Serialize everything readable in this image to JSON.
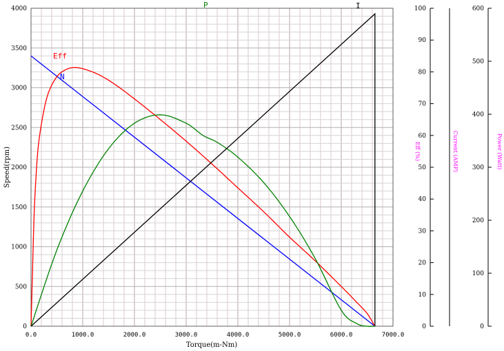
{
  "chart_data": {
    "type": "line",
    "xlabel": "Torque(m-Nm)",
    "ylabel": "Speed(rpm)",
    "xlim": [
      0,
      7000
    ],
    "ylim": [
      0,
      4000
    ],
    "x_ticks": [
      "0.0",
      "1000.0",
      "2000.0",
      "3000.0",
      "4000.0",
      "5000.0",
      "6000.0",
      "7000.0"
    ],
    "y_ticks": [
      "0",
      "500",
      "1000",
      "1500",
      "2000",
      "2500",
      "3000",
      "3500",
      "4000"
    ],
    "right_axes": [
      {
        "title": "Eff (%)",
        "min": 0,
        "max": 100,
        "ticks": [
          "0",
          "10",
          "20",
          "30",
          "40",
          "50",
          "60",
          "70",
          "80",
          "90",
          "100"
        ]
      },
      {
        "title": "Current (AMP)",
        "min": 0,
        "max": 600,
        "ticks": []
      },
      {
        "title": "Power (Watt)",
        "min": 0,
        "max": 600,
        "ticks": [
          "0",
          "100",
          "200",
          "300",
          "400",
          "500",
          "600"
        ]
      }
    ],
    "grid": true,
    "series": [
      {
        "name": "N",
        "color": "#0000ff",
        "axis": "speed",
        "x": [
          0,
          6650
        ],
        "y": [
          3400,
          0
        ]
      },
      {
        "name": "Eff",
        "color": "#ff0000",
        "axis": "eff",
        "x": [
          0,
          30,
          60,
          100,
          150,
          250,
          350,
          500,
          650,
          800,
          1000,
          1300,
          1600,
          2000,
          2500,
          3000,
          3500,
          4000,
          4500,
          5000,
          5500,
          6000,
          6300,
          6500,
          6650
        ],
        "y": [
          0,
          18,
          35,
          48,
          58,
          68,
          74,
          78.5,
          80.5,
          81.3,
          81.0,
          79.2,
          76.3,
          71.5,
          65.0,
          58.2,
          51.0,
          43.5,
          36.0,
          28.0,
          20.5,
          12.5,
          7.5,
          4.0,
          0
        ]
      },
      {
        "name": "P",
        "color": "#008000",
        "axis": "power",
        "x": [
          0,
          500,
          1000,
          1500,
          2000,
          2500,
          3000,
          3325,
          3600,
          4000,
          4500,
          5000,
          5500,
          6000,
          6300,
          6500,
          6650
        ],
        "y": [
          0,
          144,
          255,
          335,
          383,
          399,
          383,
          360,
          347,
          319,
          271,
          207,
          127,
          30,
          5,
          0,
          0
        ]
      },
      {
        "name": "I",
        "color": "#000000",
        "axis": "current",
        "x": [
          0,
          6650,
          6650
        ],
        "y": [
          0,
          3930,
          0
        ]
      }
    ]
  }
}
